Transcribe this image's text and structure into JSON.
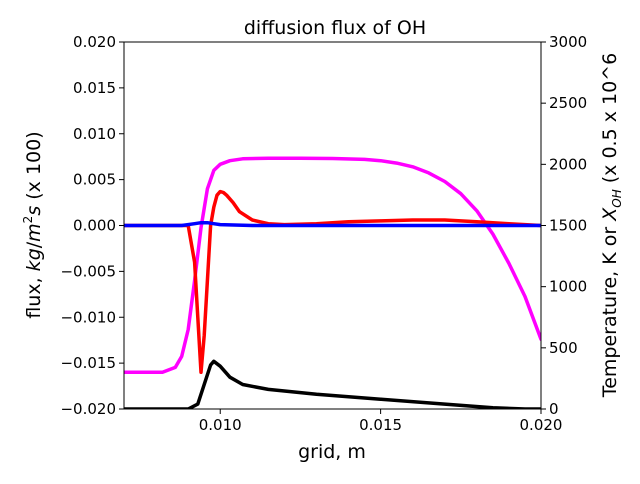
{
  "chart_data": {
    "type": "line",
    "title": "diffusion flux of OH",
    "xlabel": "grid, m",
    "ylabel": "flux, $kg/m^2s$ (x 100)",
    "ylabel_parts": {
      "pre": "flux, ",
      "kg": "kg",
      "slash": "/",
      "m": "m",
      "sup": "2",
      "s": "s",
      "post": " (x 100)"
    },
    "y2label": "Temperature, K or $X_{OH}$ (x 0.5 x 10^6",
    "y2label_parts": {
      "pre": "Temperature, K or ",
      "x": "X",
      "sub": "OH",
      "post": " (x 0.5 x 10^6"
    },
    "xlim": [
      0.007,
      0.02
    ],
    "ylim": [
      -0.02,
      0.02
    ],
    "y2lim": [
      0,
      3000
    ],
    "xticks": [
      "0.010",
      "0.015",
      "0.020"
    ],
    "xtick_values": [
      0.01,
      0.015,
      0.02
    ],
    "yticks": [
      "0.020",
      "0.015",
      "0.010",
      "0.005",
      "0.000",
      "−0.005",
      "−0.010",
      "−0.015",
      "−0.020"
    ],
    "ytick_values": [
      0.02,
      0.015,
      0.01,
      0.005,
      0.0,
      -0.005,
      -0.01,
      -0.015,
      -0.02
    ],
    "y2ticks": [
      "3000",
      "2500",
      "2000",
      "1500",
      "1000",
      "500",
      "0"
    ],
    "y2tick_values": [
      3000,
      2500,
      2000,
      1500,
      1000,
      500,
      0
    ],
    "grid": false,
    "series": [
      {
        "color": "#ff00ff",
        "axis": "right",
        "x": [
          0.007,
          0.0082,
          0.0086,
          0.0088,
          0.009,
          0.0092,
          0.0094,
          0.0096,
          0.0098,
          0.01,
          0.0103,
          0.0107,
          0.0115,
          0.0125,
          0.0135,
          0.0145,
          0.015,
          0.0155,
          0.016,
          0.0165,
          0.017,
          0.0175,
          0.018,
          0.0185,
          0.019,
          0.0195,
          0.02
        ],
        "y": [
          300,
          300,
          340,
          430,
          650,
          1050,
          1480,
          1800,
          1950,
          2000,
          2030,
          2045,
          2050,
          2050,
          2048,
          2040,
          2030,
          2010,
          1980,
          1930,
          1860,
          1760,
          1620,
          1430,
          1190,
          920,
          570
        ]
      },
      {
        "color": "#ff0000",
        "axis": "left",
        "x": [
          0.007,
          0.009,
          0.0092,
          0.0093,
          0.0094,
          0.0095,
          0.0096,
          0.0097,
          0.0098,
          0.0099,
          0.01,
          0.0101,
          0.0102,
          0.0104,
          0.0106,
          0.011,
          0.0115,
          0.012,
          0.013,
          0.014,
          0.015,
          0.016,
          0.017,
          0.018,
          0.019,
          0.02
        ],
        "y": [
          0.0,
          0.0,
          -0.004,
          -0.01,
          -0.016,
          -0.012,
          -0.006,
          0.0,
          0.002,
          0.0033,
          0.0037,
          0.0036,
          0.0033,
          0.0025,
          0.0015,
          0.0006,
          0.0002,
          0.0001,
          0.0002,
          0.0004,
          0.0005,
          0.0006,
          0.0006,
          0.0004,
          0.0002,
          0.0
        ]
      },
      {
        "color": "#0000ff",
        "axis": "left",
        "x": [
          0.007,
          0.0088,
          0.0092,
          0.0094,
          0.0096,
          0.0098,
          0.01,
          0.011,
          0.015,
          0.02
        ],
        "y": [
          0.0,
          0.0,
          0.0002,
          0.0003,
          0.0003,
          0.0002,
          0.0001,
          0.0,
          0.0,
          0.0
        ]
      },
      {
        "color": "#000000",
        "axis": "right",
        "x": [
          0.007,
          0.009,
          0.0093,
          0.0095,
          0.0097,
          0.0098,
          0.01,
          0.0103,
          0.0107,
          0.0115,
          0.013,
          0.015,
          0.017,
          0.0185,
          0.0195,
          0.02
        ],
        "y": [
          0,
          0,
          40,
          200,
          360,
          390,
          350,
          260,
          200,
          160,
          120,
          80,
          40,
          10,
          0,
          0
        ]
      }
    ]
  }
}
